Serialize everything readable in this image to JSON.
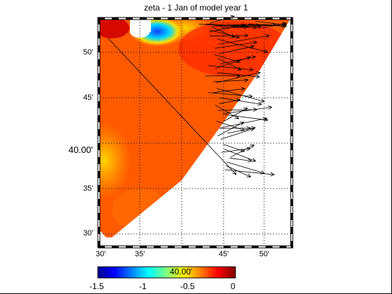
{
  "figure": {
    "title": "zeta - 1 Jan of model year 1"
  },
  "map": {
    "lat_labels": [
      "50'",
      "45'",
      "40.00'",
      "35'",
      "30'"
    ],
    "lon_labels": [
      "30'",
      "35'",
      "45'",
      "50'"
    ],
    "grid": true,
    "frame_style": "checkered black/white border"
  },
  "colorbar": {
    "label": "40.00'",
    "ticks": [
      "-1.5",
      "-1",
      "-0.5",
      "0"
    ],
    "colormap": "jet",
    "range": [
      -1.6,
      0.05
    ]
  },
  "chart_data": {
    "type": "heatmap",
    "title": "zeta - 1 Jan of model year 1",
    "colormap": "jet",
    "value_range": [
      -1.6,
      0.05
    ],
    "colorbar_ticks": [
      -1.5,
      -1,
      -0.5,
      0
    ],
    "overlay": "velocity vectors (arrows) along the eastern open boundary",
    "grid": true
  }
}
